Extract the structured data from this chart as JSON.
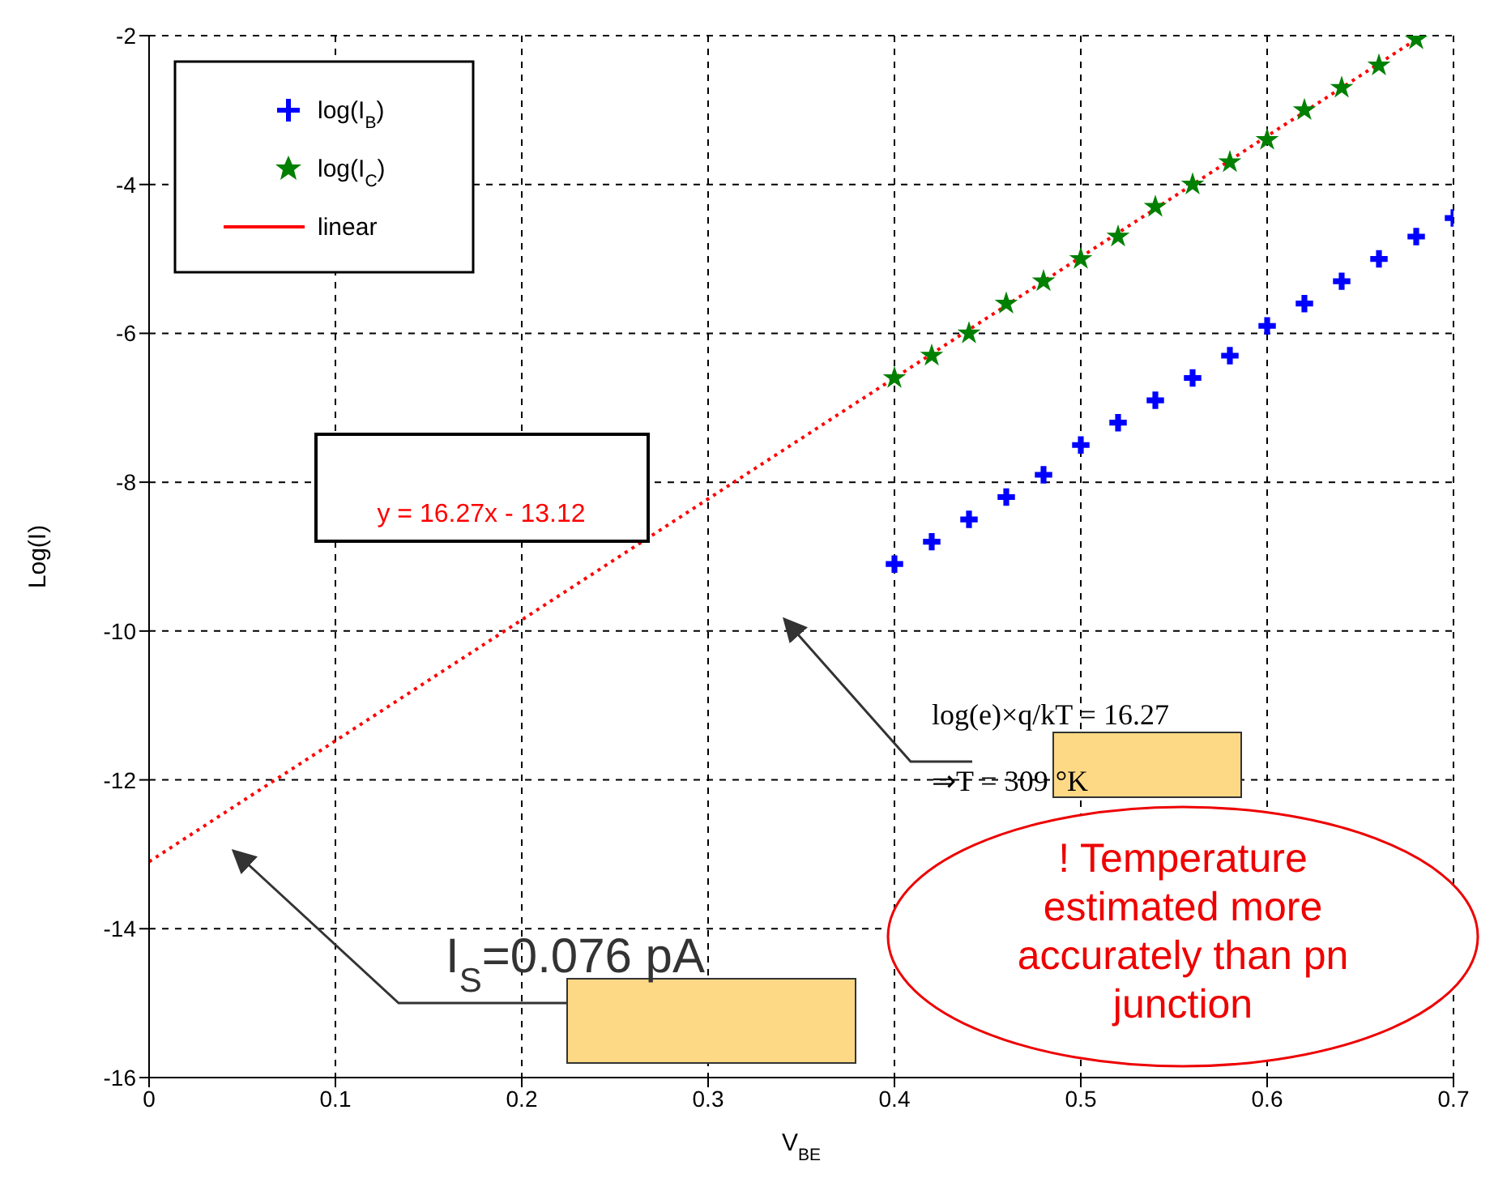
{
  "chart_data": {
    "type": "scatter",
    "xlabel": "V$_{BE}$",
    "ylabel": "Log(I)",
    "xlim": [
      0,
      0.7
    ],
    "xticks": [
      0,
      0.1,
      0.2,
      0.3,
      0.4,
      0.5,
      0.6,
      0.7
    ],
    "ylim": [
      -16,
      -2
    ],
    "yticks": [
      -16,
      -14,
      -12,
      -10,
      -8,
      -6,
      -4,
      -2
    ],
    "grid": true,
    "legend": "top left",
    "series": [
      {
        "name": "log(I$_{B}$)",
        "marker": "cross",
        "color": "#0000ff",
        "x": [
          0.4,
          0.42,
          0.44,
          0.46,
          0.48,
          0.5,
          0.52,
          0.54,
          0.56,
          0.58,
          0.6,
          0.62,
          0.64,
          0.66,
          0.68,
          0.7
        ],
        "values": [
          -9.1,
          -8.8,
          -8.5,
          -8.2,
          -7.9,
          -7.5,
          -7.2,
          -6.9,
          -6.6,
          -6.3,
          -5.9,
          -5.6,
          -5.3,
          -5.0,
          -4.7,
          -4.45
        ]
      },
      {
        "name": "log(I$_{C}$)",
        "marker": "star",
        "color": "#008000",
        "x": [
          0.4,
          0.42,
          0.44,
          0.46,
          0.48,
          0.5,
          0.52,
          0.54,
          0.56,
          0.58,
          0.6,
          0.62,
          0.64,
          0.66,
          0.68
        ],
        "values": [
          -6.6,
          -6.3,
          -6.0,
          -5.6,
          -5.3,
          -5.0,
          -4.7,
          -4.3,
          -4.0,
          -3.7,
          -3.4,
          -3.0,
          -2.7,
          -2.4,
          -2.05
        ]
      },
      {
        "name": "linear",
        "type": "line",
        "marker": "none",
        "line_style": "dotted",
        "color": "#ff0000",
        "x": [
          0,
          0.08,
          0.68
        ],
        "values": [
          -13.1,
          -11.8,
          -2.05
        ]
      }
    ],
    "annotations": [
      "y = 16.27x - 13.12",
      "log(e)×q/kT = 16.27",
      "⇒T = 309 °K",
      "I$_{S}$=0.076 pA",
      "! Temperature estimated more accurately than pn junction"
    ]
  }
}
